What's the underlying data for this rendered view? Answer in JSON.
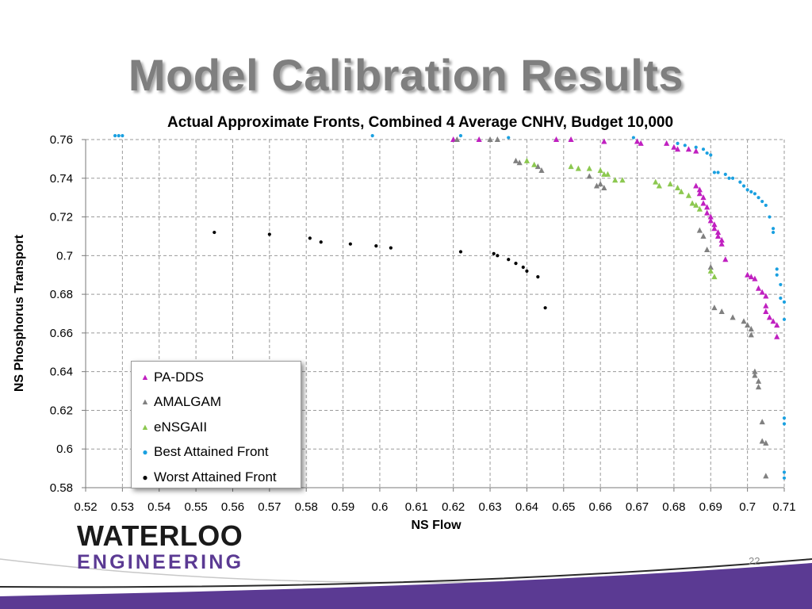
{
  "slide": {
    "title": "Model Calibration Results",
    "page_number": "22",
    "logo_line1": "WATERLOO",
    "logo_line2": "ENGINEERING",
    "brand_color": "#5b3a93"
  },
  "chart_data": {
    "type": "scatter",
    "title": "Actual Approximate Fronts, Combined 4 Average CNHV, Budget 10,000",
    "xlabel": "NS Flow",
    "ylabel": "NS Phosphorus Transport",
    "xlim": [
      0.52,
      0.71
    ],
    "ylim": [
      0.58,
      0.76
    ],
    "xticks": [
      "0.52",
      "0.53",
      "0.54",
      "0.55",
      "0.56",
      "0.57",
      "0.58",
      "0.59",
      "0.6",
      "0.61",
      "0.62",
      "0.63",
      "0.64",
      "0.65",
      "0.66",
      "0.67",
      "0.68",
      "0.69",
      "0.7",
      "0.71"
    ],
    "yticks": [
      "0.58",
      "0.6",
      "0.62",
      "0.64",
      "0.66",
      "0.68",
      "0.7",
      "0.72",
      "0.74",
      "0.76"
    ],
    "grid": "dashed",
    "legend_position": "bottom-left",
    "series": [
      {
        "name": "PA-DDS",
        "marker": "triangle",
        "color": "#c020c0",
        "points": [
          [
            0.62,
            0.76
          ],
          [
            0.627,
            0.76
          ],
          [
            0.648,
            0.76
          ],
          [
            0.652,
            0.76
          ],
          [
            0.661,
            0.759
          ],
          [
            0.67,
            0.759
          ],
          [
            0.671,
            0.758
          ],
          [
            0.678,
            0.758
          ],
          [
            0.68,
            0.756
          ],
          [
            0.681,
            0.755
          ],
          [
            0.684,
            0.755
          ],
          [
            0.686,
            0.754
          ],
          [
            0.686,
            0.736
          ],
          [
            0.687,
            0.734
          ],
          [
            0.687,
            0.732
          ],
          [
            0.688,
            0.73
          ],
          [
            0.688,
            0.727
          ],
          [
            0.689,
            0.725
          ],
          [
            0.689,
            0.722
          ],
          [
            0.69,
            0.72
          ],
          [
            0.69,
            0.718
          ],
          [
            0.691,
            0.716
          ],
          [
            0.691,
            0.714
          ],
          [
            0.692,
            0.712
          ],
          [
            0.692,
            0.71
          ],
          [
            0.693,
            0.708
          ],
          [
            0.693,
            0.706
          ],
          [
            0.694,
            0.698
          ],
          [
            0.7,
            0.69
          ],
          [
            0.701,
            0.689
          ],
          [
            0.702,
            0.688
          ],
          [
            0.703,
            0.683
          ],
          [
            0.704,
            0.681
          ],
          [
            0.705,
            0.679
          ],
          [
            0.705,
            0.674
          ],
          [
            0.705,
            0.671
          ],
          [
            0.706,
            0.668
          ],
          [
            0.707,
            0.666
          ],
          [
            0.708,
            0.664
          ],
          [
            0.708,
            0.658
          ]
        ]
      },
      {
        "name": "AMALGAM",
        "marker": "triangle",
        "color": "#808080",
        "points": [
          [
            0.621,
            0.76
          ],
          [
            0.63,
            0.76
          ],
          [
            0.632,
            0.76
          ],
          [
            0.637,
            0.749
          ],
          [
            0.638,
            0.748
          ],
          [
            0.643,
            0.746
          ],
          [
            0.644,
            0.744
          ],
          [
            0.657,
            0.741
          ],
          [
            0.659,
            0.736
          ],
          [
            0.66,
            0.737
          ],
          [
            0.661,
            0.735
          ],
          [
            0.687,
            0.713
          ],
          [
            0.688,
            0.71
          ],
          [
            0.689,
            0.703
          ],
          [
            0.69,
            0.694
          ],
          [
            0.691,
            0.673
          ],
          [
            0.693,
            0.671
          ],
          [
            0.696,
            0.668
          ],
          [
            0.699,
            0.666
          ],
          [
            0.7,
            0.664
          ],
          [
            0.701,
            0.662
          ],
          [
            0.701,
            0.659
          ],
          [
            0.702,
            0.64
          ],
          [
            0.702,
            0.638
          ],
          [
            0.703,
            0.635
          ],
          [
            0.703,
            0.632
          ],
          [
            0.704,
            0.614
          ],
          [
            0.704,
            0.604
          ],
          [
            0.705,
            0.603
          ],
          [
            0.705,
            0.586
          ]
        ]
      },
      {
        "name": "eNSGAII",
        "marker": "triangle",
        "color": "#8cc850",
        "points": [
          [
            0.64,
            0.749
          ],
          [
            0.642,
            0.747
          ],
          [
            0.652,
            0.746
          ],
          [
            0.654,
            0.745
          ],
          [
            0.657,
            0.745
          ],
          [
            0.66,
            0.744
          ],
          [
            0.661,
            0.742
          ],
          [
            0.662,
            0.742
          ],
          [
            0.664,
            0.739
          ],
          [
            0.666,
            0.739
          ],
          [
            0.675,
            0.738
          ],
          [
            0.676,
            0.736
          ],
          [
            0.679,
            0.737
          ],
          [
            0.681,
            0.735
          ],
          [
            0.682,
            0.733
          ],
          [
            0.684,
            0.731
          ],
          [
            0.685,
            0.727
          ],
          [
            0.686,
            0.726
          ],
          [
            0.687,
            0.724
          ],
          [
            0.69,
            0.692
          ],
          [
            0.691,
            0.689
          ]
        ]
      },
      {
        "name": "Best Attained Front",
        "marker": "dot",
        "color": "#1aa0e0",
        "points": [
          [
            0.528,
            0.762
          ],
          [
            0.529,
            0.762
          ],
          [
            0.53,
            0.762
          ],
          [
            0.598,
            0.762
          ],
          [
            0.622,
            0.762
          ],
          [
            0.635,
            0.761
          ],
          [
            0.669,
            0.761
          ],
          [
            0.681,
            0.758
          ],
          [
            0.683,
            0.757
          ],
          [
            0.686,
            0.756
          ],
          [
            0.688,
            0.755
          ],
          [
            0.689,
            0.753
          ],
          [
            0.69,
            0.752
          ],
          [
            0.691,
            0.743
          ],
          [
            0.692,
            0.743
          ],
          [
            0.694,
            0.742
          ],
          [
            0.695,
            0.74
          ],
          [
            0.696,
            0.74
          ],
          [
            0.698,
            0.738
          ],
          [
            0.699,
            0.736
          ],
          [
            0.7,
            0.734
          ],
          [
            0.701,
            0.733
          ],
          [
            0.702,
            0.732
          ],
          [
            0.703,
            0.73
          ],
          [
            0.704,
            0.728
          ],
          [
            0.705,
            0.726
          ],
          [
            0.706,
            0.72
          ],
          [
            0.707,
            0.714
          ],
          [
            0.707,
            0.712
          ],
          [
            0.708,
            0.693
          ],
          [
            0.708,
            0.69
          ],
          [
            0.709,
            0.685
          ],
          [
            0.709,
            0.678
          ],
          [
            0.71,
            0.676
          ],
          [
            0.71,
            0.667
          ],
          [
            0.71,
            0.616
          ],
          [
            0.71,
            0.613
          ],
          [
            0.71,
            0.588
          ],
          [
            0.71,
            0.585
          ]
        ]
      },
      {
        "name": "Worst Attained Front",
        "marker": "dot",
        "color": "#000000",
        "points": [
          [
            0.555,
            0.712
          ],
          [
            0.57,
            0.711
          ],
          [
            0.581,
            0.709
          ],
          [
            0.584,
            0.707
          ],
          [
            0.592,
            0.706
          ],
          [
            0.599,
            0.705
          ],
          [
            0.603,
            0.704
          ],
          [
            0.622,
            0.702
          ],
          [
            0.631,
            0.701
          ],
          [
            0.632,
            0.7
          ],
          [
            0.635,
            0.698
          ],
          [
            0.637,
            0.696
          ],
          [
            0.639,
            0.694
          ],
          [
            0.64,
            0.692
          ],
          [
            0.643,
            0.689
          ],
          [
            0.645,
            0.673
          ]
        ]
      }
    ]
  }
}
